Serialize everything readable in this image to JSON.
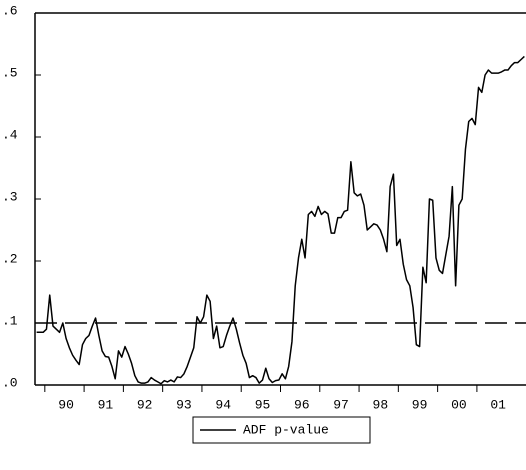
{
  "chart_data": {
    "type": "line",
    "categories": [
      null,
      null,
      null,
      null,
      null,
      null,
      null,
      null,
      null,
      "90",
      null,
      null,
      null,
      null,
      null,
      null,
      null,
      null,
      null,
      null,
      null,
      "91",
      null,
      null,
      null,
      null,
      null,
      null,
      null,
      null,
      null,
      null,
      null,
      "92",
      null,
      null,
      null,
      null,
      null,
      null,
      null,
      null,
      null,
      null,
      null,
      "93",
      null,
      null,
      null,
      null,
      null,
      null,
      null,
      null,
      null,
      null,
      null,
      "94",
      null,
      null,
      null,
      null,
      null,
      null,
      null,
      null,
      null,
      null,
      null,
      "95",
      null,
      null,
      null,
      null,
      null,
      null,
      null,
      null,
      null,
      null,
      null,
      "96",
      null,
      null,
      null,
      null,
      null,
      null,
      null,
      null,
      null,
      null,
      null,
      "97",
      null,
      null,
      null,
      null,
      null,
      null,
      null,
      null,
      null,
      null,
      null,
      "98",
      null,
      null,
      null,
      null,
      null,
      null,
      null,
      null,
      null,
      null,
      null,
      "99",
      null,
      null,
      null,
      null,
      null,
      null,
      null,
      null,
      null,
      null,
      null,
      "00",
      null,
      null,
      null,
      null,
      null,
      null,
      null,
      null,
      null,
      null,
      null,
      "01",
      null,
      null,
      null,
      null,
      null,
      null,
      null,
      null
    ],
    "series": [
      {
        "name": "ADF p-value",
        "color": "#000000",
        "values": [
          0.085,
          0.085,
          0.085,
          0.09,
          0.145,
          0.095,
          0.09,
          0.085,
          0.1,
          0.075,
          0.06,
          0.048,
          0.04,
          0.033,
          0.065,
          0.075,
          0.08,
          0.095,
          0.108,
          0.08,
          0.055,
          0.046,
          0.045,
          0.03,
          0.01,
          0.055,
          0.045,
          0.062,
          0.05,
          0.035,
          0.015,
          0.005,
          0.003,
          0.003,
          0.005,
          0.012,
          0.008,
          0.005,
          0.002,
          0.007,
          0.005,
          0.008,
          0.005,
          0.013,
          0.012,
          0.018,
          0.03,
          0.045,
          0.06,
          0.11,
          0.1,
          0.11,
          0.145,
          0.135,
          0.075,
          0.095,
          0.06,
          0.062,
          0.08,
          0.095,
          0.108,
          0.09,
          0.068,
          0.048,
          0.035,
          0.012,
          0.015,
          0.012,
          0.003,
          0.008,
          0.027,
          0.01,
          0.004,
          0.007,
          0.008,
          0.018,
          0.01,
          0.03,
          0.07,
          0.16,
          0.205,
          0.235,
          0.205,
          0.275,
          0.28,
          0.272,
          0.288,
          0.275,
          0.28,
          0.276,
          0.245,
          0.245,
          0.27,
          0.27,
          0.28,
          0.282,
          0.36,
          0.31,
          0.305,
          0.308,
          0.29,
          0.25,
          0.255,
          0.26,
          0.258,
          0.25,
          0.235,
          0.215,
          0.32,
          0.34,
          0.225,
          0.235,
          0.195,
          0.17,
          0.16,
          0.125,
          0.065,
          0.062,
          0.19,
          0.165,
          0.3,
          0.298,
          0.205,
          0.185,
          0.18,
          0.21,
          0.24,
          0.32,
          0.16,
          0.29,
          0.3,
          0.38,
          0.425,
          0.43,
          0.42,
          0.48,
          0.472,
          0.5,
          0.508,
          0.503,
          0.503,
          0.503,
          0.505,
          0.508,
          0.508,
          0.515,
          0.52,
          0.52,
          0.525,
          0.53
        ]
      }
    ],
    "reference_line": 0.1,
    "ylim": [
      0,
      0.6
    ],
    "yticks": [
      {
        "value": 0,
        "label": ".0"
      },
      {
        "value": 0.1,
        "label": ".1"
      },
      {
        "value": 0.2,
        "label": ".2"
      },
      {
        "value": 0.3,
        "label": ".3"
      },
      {
        "value": 0.4,
        "label": ".4"
      },
      {
        "value": 0.5,
        "label": ".5"
      },
      {
        "value": 0.6,
        "label": ".6"
      }
    ],
    "grid": false
  }
}
